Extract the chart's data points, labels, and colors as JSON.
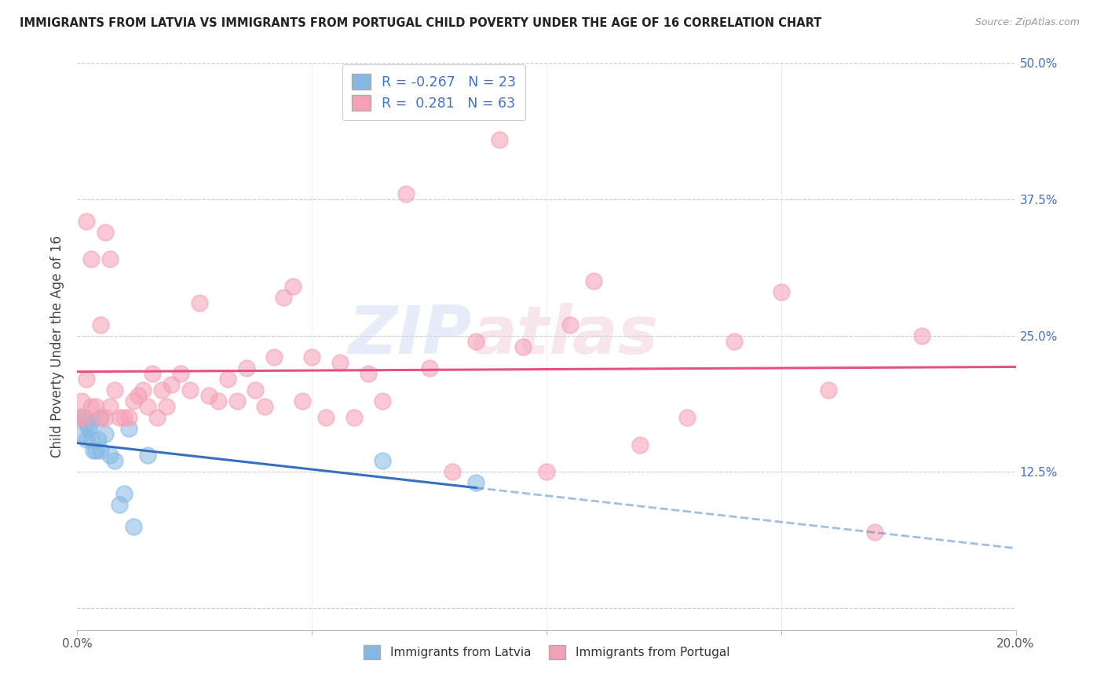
{
  "title": "IMMIGRANTS FROM LATVIA VS IMMIGRANTS FROM PORTUGAL CHILD POVERTY UNDER THE AGE OF 16 CORRELATION CHART",
  "source": "Source: ZipAtlas.com",
  "ylabel": "Child Poverty Under the Age of 16",
  "xlim": [
    0.0,
    0.2
  ],
  "ylim": [
    -0.02,
    0.5
  ],
  "xticks": [
    0.0,
    0.05,
    0.1,
    0.15,
    0.2
  ],
  "xtick_labels": [
    "0.0%",
    "",
    "",
    "",
    "20.0%"
  ],
  "ytick_labels_right": [
    "50.0%",
    "37.5%",
    "25.0%",
    "12.5%",
    ""
  ],
  "yticks_right": [
    0.5,
    0.375,
    0.25,
    0.125,
    0.0
  ],
  "yticks": [
    0.0,
    0.125,
    0.25,
    0.375,
    0.5
  ],
  "legend_labels": [
    "Immigrants from Latvia",
    "Immigrants from Portugal"
  ],
  "r_latvia": -0.267,
  "n_latvia": 23,
  "r_portugal": 0.281,
  "n_portugal": 63,
  "color_latvia": "#85B9E5",
  "color_portugal": "#F5A0B5",
  "color_latvia_line": "#3570C0",
  "color_portugal_line": "#E85080",
  "watermark_zip": "ZIP",
  "watermark_atlas": "atlas",
  "latvia_x": [
    0.0005,
    0.001,
    0.0015,
    0.002,
    0.002,
    0.0025,
    0.003,
    0.003,
    0.0035,
    0.004,
    0.0045,
    0.005,
    0.005,
    0.006,
    0.007,
    0.008,
    0.009,
    0.01,
    0.011,
    0.012,
    0.015,
    0.065,
    0.085
  ],
  "latvia_y": [
    0.175,
    0.16,
    0.175,
    0.155,
    0.17,
    0.165,
    0.155,
    0.17,
    0.145,
    0.145,
    0.155,
    0.175,
    0.145,
    0.16,
    0.14,
    0.135,
    0.095,
    0.105,
    0.165,
    0.075,
    0.14,
    0.135,
    0.115
  ],
  "portugal_x": [
    0.0005,
    0.001,
    0.0015,
    0.002,
    0.002,
    0.003,
    0.003,
    0.004,
    0.005,
    0.005,
    0.006,
    0.006,
    0.007,
    0.007,
    0.008,
    0.009,
    0.01,
    0.011,
    0.012,
    0.013,
    0.014,
    0.015,
    0.016,
    0.017,
    0.018,
    0.019,
    0.02,
    0.022,
    0.024,
    0.026,
    0.028,
    0.03,
    0.032,
    0.034,
    0.036,
    0.038,
    0.04,
    0.042,
    0.044,
    0.046,
    0.048,
    0.05,
    0.053,
    0.056,
    0.059,
    0.062,
    0.065,
    0.07,
    0.075,
    0.08,
    0.085,
    0.09,
    0.095,
    0.1,
    0.105,
    0.11,
    0.12,
    0.13,
    0.14,
    0.15,
    0.16,
    0.17,
    0.18
  ],
  "portugal_y": [
    0.175,
    0.19,
    0.175,
    0.21,
    0.355,
    0.185,
    0.32,
    0.185,
    0.175,
    0.26,
    0.175,
    0.345,
    0.185,
    0.32,
    0.2,
    0.175,
    0.175,
    0.175,
    0.19,
    0.195,
    0.2,
    0.185,
    0.215,
    0.175,
    0.2,
    0.185,
    0.205,
    0.215,
    0.2,
    0.28,
    0.195,
    0.19,
    0.21,
    0.19,
    0.22,
    0.2,
    0.185,
    0.23,
    0.285,
    0.295,
    0.19,
    0.23,
    0.175,
    0.225,
    0.175,
    0.215,
    0.19,
    0.38,
    0.22,
    0.125,
    0.245,
    0.43,
    0.24,
    0.125,
    0.26,
    0.3,
    0.15,
    0.175,
    0.245,
    0.29,
    0.2,
    0.07,
    0.25
  ],
  "background_color": "#FFFFFF",
  "grid_color": "#CCCCCC"
}
